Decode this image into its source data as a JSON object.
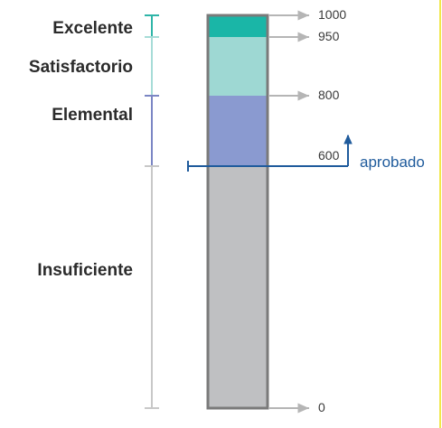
{
  "levels": [
    {
      "name": "Excelente",
      "min": 950,
      "max": 1000,
      "color": "#1ab6a7",
      "bracket": "#2fb5a8"
    },
    {
      "name": "Satisfactorio",
      "min": 800,
      "max": 950,
      "color": "#9ed8d3",
      "bracket": "#a6dcd7"
    },
    {
      "name": "Elemental",
      "min": 600,
      "max": 800,
      "color": "#8a9ad0",
      "bracket": "#7b86c4"
    },
    {
      "name": "Insuficiente",
      "min": 0,
      "max": 600,
      "color": "#bfc0c2",
      "bracket": "#c8c8c8"
    }
  ],
  "ticks": [
    {
      "value": 1000,
      "label": "1000"
    },
    {
      "value": 950,
      "label": "950"
    },
    {
      "value": 800,
      "label": "800"
    },
    {
      "value": 600,
      "label": "600"
    },
    {
      "value": 0,
      "label": "0"
    }
  ],
  "pass_mark": {
    "value": 600,
    "label": "aprobado",
    "color": "#1f5b9c"
  },
  "colors": {
    "bar_border": "#7a7a7a",
    "arrow": "#b5b5b5",
    "margin_line": "#f1e84a"
  }
}
